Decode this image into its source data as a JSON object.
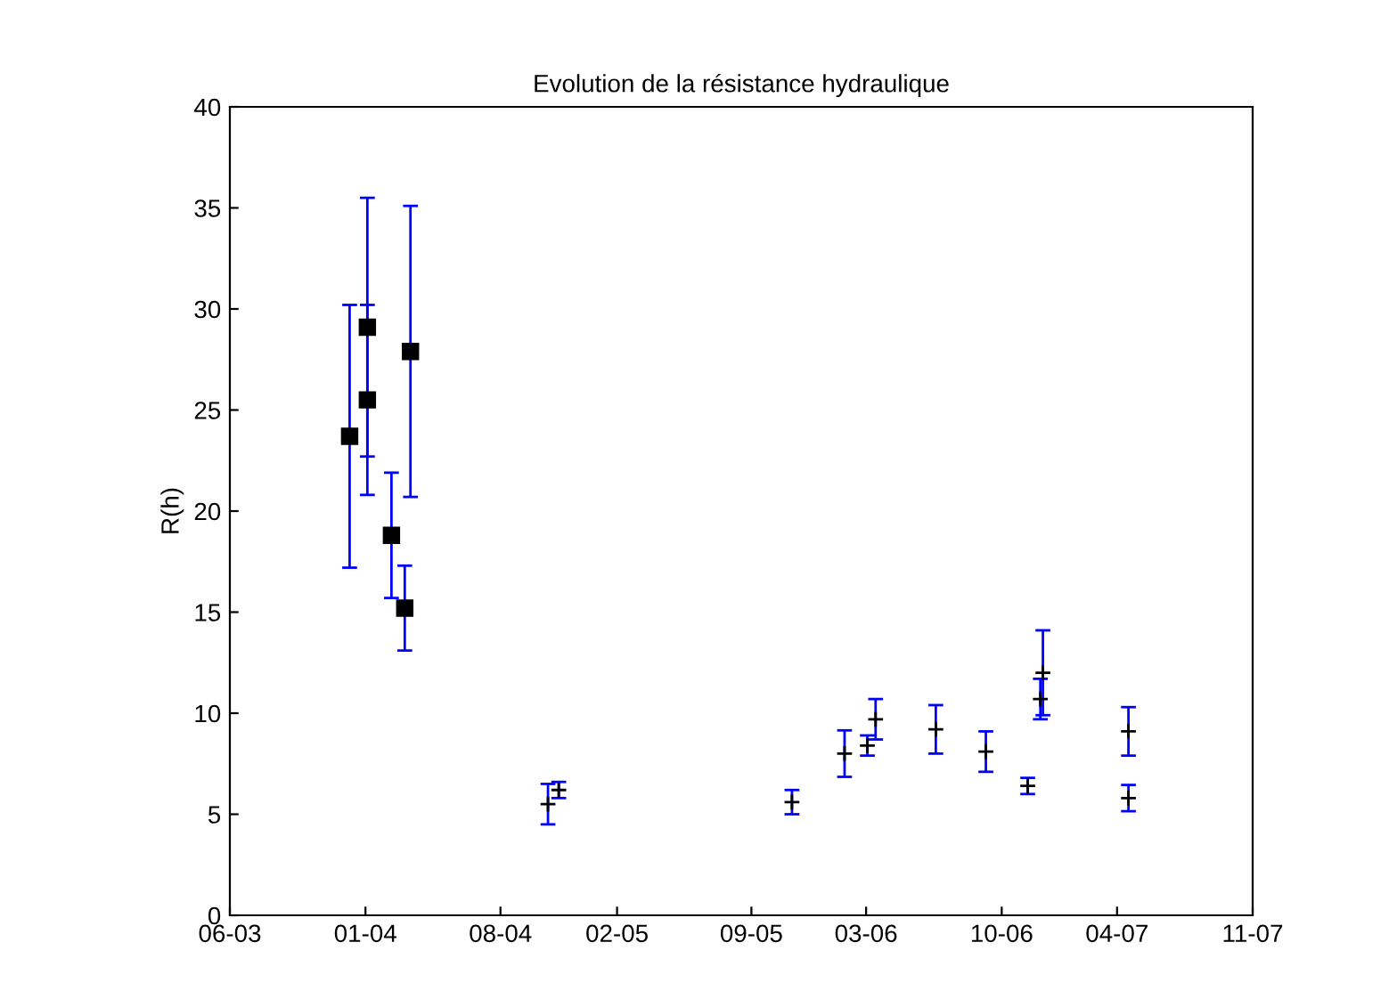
{
  "chart_data": {
    "type": "scatter",
    "title": "Evolution de la résistance hydraulique",
    "ylabel": "R(h)",
    "series": [
      {
        "color": "#000000",
        "marker": "square",
        "x": [
          "2003-12-07",
          "2004-01-04",
          "2004-01-04",
          "2004-02-11",
          "2004-03-03",
          "2004-03-12"
        ],
        "values": [
          23.7,
          29.1,
          25.5,
          18.8,
          15.2,
          27.9
        ],
        "errors": [
          6.5,
          6.4,
          4.7,
          3.1,
          2.1,
          7.2
        ]
      },
      {
        "color": "#000000",
        "marker": "cross",
        "x": [
          "2004-10-15",
          "2004-11-01",
          "2005-11-04",
          "2006-01-26",
          "2006-03-03",
          "2006-03-16",
          "2006-06-19",
          "2006-09-06",
          "2006-11-11",
          "2006-12-01",
          "2006-12-05",
          "2007-04-19",
          "2007-04-19"
        ],
        "values": [
          5.5,
          6.2,
          5.6,
          8.0,
          8.4,
          9.7,
          9.2,
          8.1,
          6.4,
          10.7,
          12.0,
          9.1,
          5.8
        ],
        "errors": [
          1.0,
          0.4,
          0.6,
          1.15,
          0.5,
          1.0,
          1.2,
          1.0,
          0.4,
          1.0,
          2.1,
          1.2,
          0.65
        ]
      }
    ],
    "xlim": [
      "2003-06-01",
      "2007-11-01"
    ],
    "xticks": [
      {
        "value": "2003-06-01",
        "label": "06-03"
      },
      {
        "value": "2004-01-01",
        "label": "01-04"
      },
      {
        "value": "2004-08-01",
        "label": "08-04"
      },
      {
        "value": "2005-02-01",
        "label": "02-05"
      },
      {
        "value": "2005-09-01",
        "label": "09-05"
      },
      {
        "value": "2006-03-01",
        "label": "03-06"
      },
      {
        "value": "2006-10-01",
        "label": "10-06"
      },
      {
        "value": "2007-04-01",
        "label": "04-07"
      },
      {
        "value": "2007-11-01",
        "label": "11-07"
      }
    ],
    "ylim": [
      0,
      40
    ],
    "yticks": [
      0,
      5,
      10,
      15,
      20,
      25,
      30,
      35,
      40
    ],
    "grid": false
  }
}
